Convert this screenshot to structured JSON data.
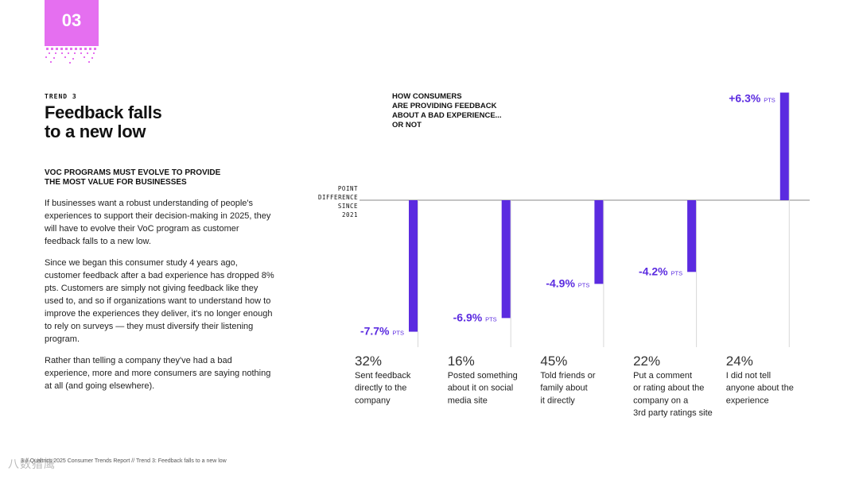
{
  "badge": {
    "number": "03"
  },
  "trend": {
    "eyebrow": "TREND 3",
    "title_lines": [
      "Feedback falls",
      "to a new low"
    ]
  },
  "subhead_lines": [
    "VOC PROGRAMS MUST EVOLVE TO PROVIDE",
    "THE MOST VALUE FOR BUSINESSES"
  ],
  "paragraphs": [
    "If businesses want a robust understanding of people's experiences to support their decision-making in 2025, they will have to evolve their VoC program as customer feedback falls to a new low.",
    "Since we began this consumer study 4 years ago, customer feedback after a bad experience has dropped 8% pts. Customers are simply not giving feedback like they used to, and so if organizations want to understand how to improve the experiences they deliver, it's no longer enough to rely on surveys — they must diversify their listening program.",
    "Rather than telling a company they've had a bad experience, more and more consumers are saying nothing at all (and going elsewhere)."
  ],
  "chart_data": {
    "type": "bar",
    "title_lines": [
      "HOW CONSUMERS",
      "ARE PROVIDING FEEDBACK",
      "ABOUT A BAD EXPERIENCE...",
      "OR NOT"
    ],
    "ylabel_lines": [
      "POINT",
      "DIFFERENCE",
      "SINCE",
      "2021"
    ],
    "unit": "PTS",
    "categories": [
      {
        "share": "32%",
        "label_lines": [
          "Sent feedback",
          "directly to the",
          "company"
        ]
      },
      {
        "share": "16%",
        "label_lines": [
          "Posted something",
          "about it on social",
          "media site"
        ]
      },
      {
        "share": "45%",
        "label_lines": [
          "Told friends or",
          "family about",
          "it directly"
        ]
      },
      {
        "share": "22%",
        "label_lines": [
          "Put a comment",
          "or rating about the",
          "company on a",
          "3rd party ratings site"
        ]
      },
      {
        "share": "24%",
        "label_lines": [
          "I did not tell",
          "anyone about the",
          "experience"
        ]
      }
    ],
    "values": [
      -7.7,
      -6.9,
      -4.9,
      -4.2,
      6.3
    ],
    "value_labels": [
      "-7.7%",
      "-6.9%",
      "-4.9%",
      "-4.2%",
      "+6.3%"
    ],
    "ylim": [
      -8.5,
      6.5
    ]
  },
  "footer": {
    "text": "3 // Qualtrics 2025 Consumer Trends Report  //  Trend 3: Feedback falls to a new low"
  },
  "watermark": {
    "text": "八数猎鹰"
  },
  "colors": {
    "accent": "#5b2be0",
    "badge": "#e56ff0",
    "purple_text": "#5b2be0"
  }
}
